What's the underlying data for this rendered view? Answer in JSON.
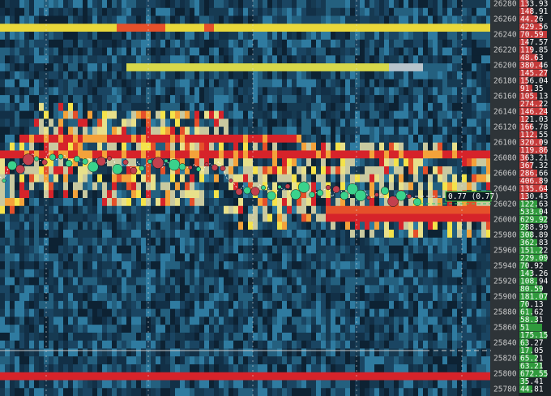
{
  "price_axis": [
    "26280",
    "26260",
    "26240",
    "26220",
    "26200",
    "26180",
    "26160",
    "26140",
    "26120",
    "26100",
    "26080",
    "26060",
    "26040",
    "26020",
    "26000",
    "25980",
    "25960",
    "25940",
    "25920",
    "25900",
    "25880",
    "25860",
    "25840",
    "25820",
    "25800",
    "25780"
  ],
  "last_trade_label": "0.77 (0.77)",
  "order_book": {
    "asks": [
      "133.93",
      "148.91",
      "44.26",
      "429.56",
      "70.59",
      "147.57",
      "119.85",
      "48.63",
      "380.46",
      "145.27",
      "156.04",
      "91.35",
      "105.13",
      "274.22",
      "146.24",
      "121.03",
      "166.78",
      "112.55",
      "320.09",
      "119.86",
      "363.21",
      "367.32",
      "286.66",
      "406.89",
      "135.64",
      "130.43"
    ],
    "bids": [
      "122.63",
      "533.04",
      "629.92",
      "288.99",
      "308.89",
      "362.83",
      "151.22",
      "229.09",
      "70.92",
      "143.26",
      "108.94",
      "80.59",
      "181.07",
      "70.13",
      "61.62",
      "58.31",
      "51",
      "175.15",
      "63.27",
      "17.05",
      "65.21",
      "63.21",
      "672.55",
      "35.41",
      "44.81"
    ]
  }
}
